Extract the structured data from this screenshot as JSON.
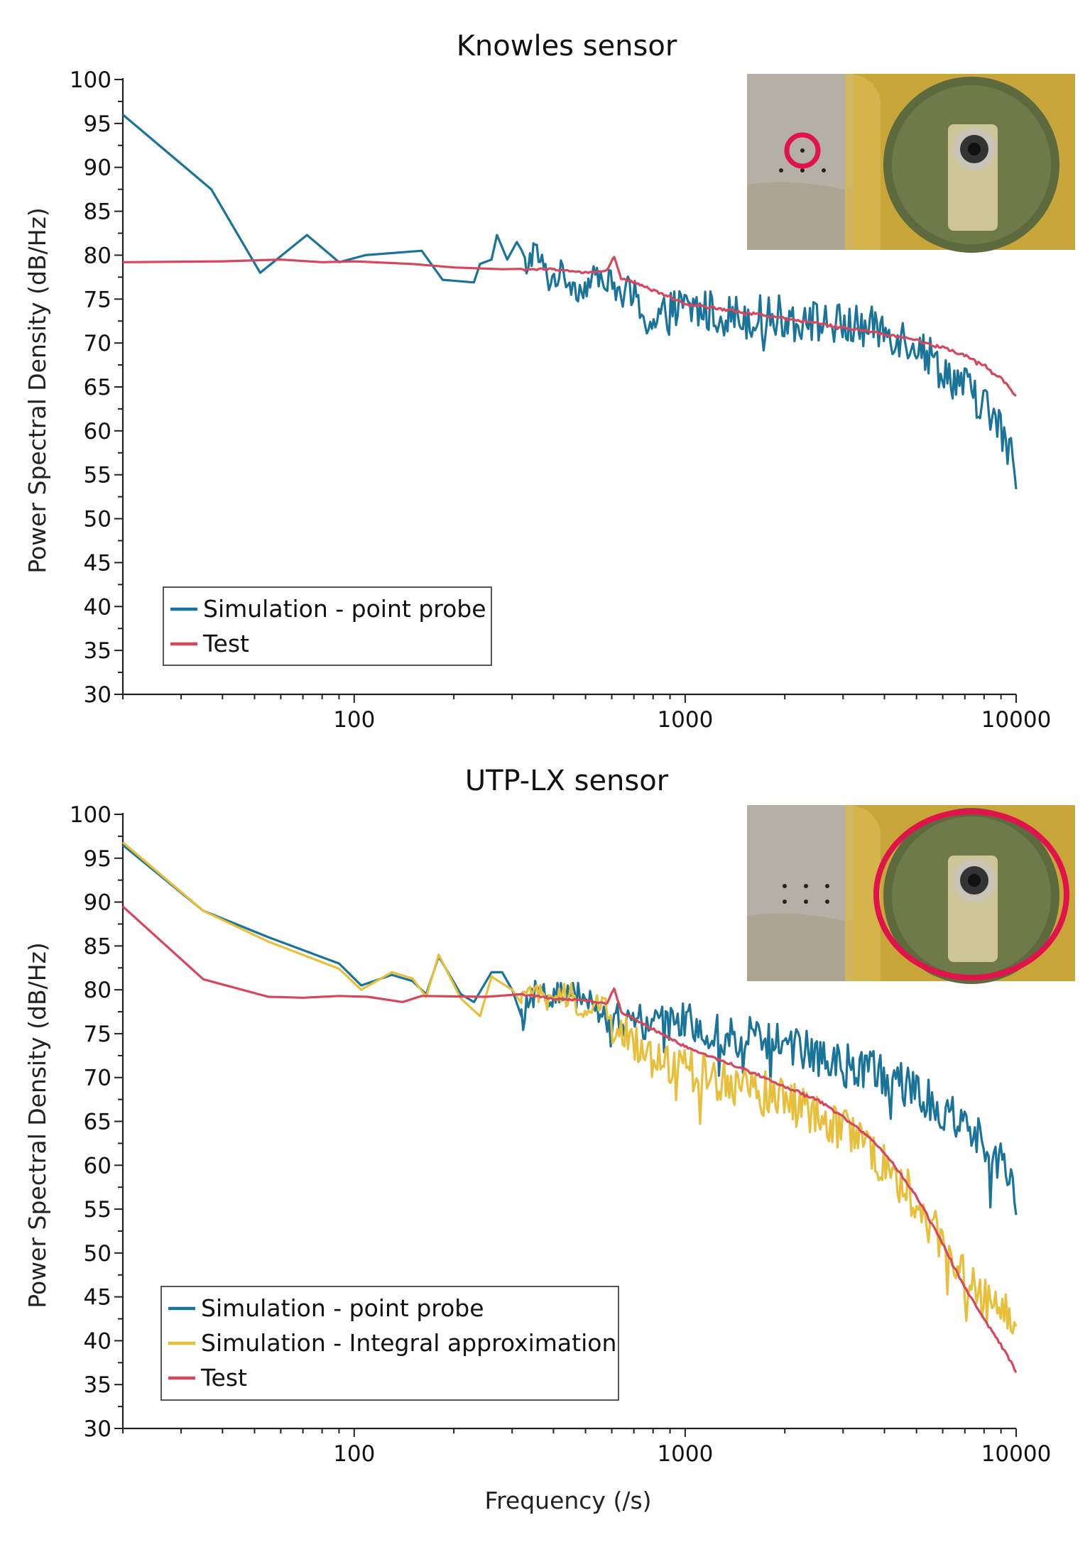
{
  "figure": {
    "xlabel": "Frequency (/s)"
  },
  "chart_data": [
    {
      "type": "line",
      "title": "Knowles sensor",
      "ylabel": "Power Spectral Density (dB/Hz)",
      "xlabel": "",
      "x_scale": "log",
      "xlim": [
        20,
        10000
      ],
      "ylim": [
        30,
        100
      ],
      "x_ticks": [
        "100",
        "1000",
        "10000"
      ],
      "y_ticks": [
        "100",
        "95",
        "90",
        "85",
        "80",
        "75",
        "70",
        "65",
        "60",
        "55",
        "50",
        "45",
        "40",
        "35",
        "30"
      ],
      "legend_position": "bottom-left",
      "inset_photo": "sensor photo with small red circle marking point probe location",
      "series": [
        {
          "name": "Simulation - point probe",
          "color": "#1a7399",
          "key_points": [
            [
              20,
              96
            ],
            [
              37,
              87.5
            ],
            [
              52,
              78
            ],
            [
              72,
              82.3
            ],
            [
              90,
              79.2
            ],
            [
              108,
              80
            ],
            [
              160,
              80.5
            ],
            [
              185,
              77.2
            ],
            [
              230,
              76.9
            ],
            [
              240,
              79
            ],
            [
              260,
              79.5
            ],
            [
              270,
              82.3
            ],
            [
              290,
              79.5
            ],
            [
              310,
              81.5
            ],
            [
              330,
              78.5
            ],
            [
              350,
              80.8
            ],
            [
              390,
              77
            ],
            [
              420,
              78
            ],
            [
              480,
              76
            ],
            [
              560,
              78
            ],
            [
              620,
              76
            ],
            [
              700,
              75
            ],
            [
              800,
              72
            ],
            [
              900,
              73.5
            ],
            [
              1000,
              74
            ],
            [
              1500,
              73
            ],
            [
              2000,
              73
            ],
            [
              3000,
              72
            ],
            [
              4000,
              71.5
            ],
            [
              5000,
              70
            ],
            [
              6000,
              67
            ],
            [
              7000,
              65
            ],
            [
              8000,
              63
            ],
            [
              9000,
              60
            ],
            [
              10000,
              55.5
            ]
          ],
          "noise_amplitude": 2.5
        },
        {
          "name": "Test",
          "color": "#d6475e",
          "key_points": [
            [
              20,
              79.2
            ],
            [
              40,
              79.3
            ],
            [
              60,
              79.5
            ],
            [
              80,
              79.2
            ],
            [
              100,
              79.3
            ],
            [
              150,
              79
            ],
            [
              200,
              78.6
            ],
            [
              280,
              78.4
            ],
            [
              400,
              78.4
            ],
            [
              500,
              78
            ],
            [
              580,
              78.2
            ],
            [
              610,
              79.9
            ],
            [
              640,
              77.5
            ],
            [
              800,
              76
            ],
            [
              1000,
              74.5
            ],
            [
              1500,
              73.5
            ],
            [
              2000,
              72.8
            ],
            [
              3000,
              71.8
            ],
            [
              4000,
              71
            ],
            [
              5000,
              70.3
            ],
            [
              6000,
              69.5
            ],
            [
              7000,
              68.6
            ],
            [
              8000,
              67.5
            ],
            [
              9000,
              66
            ],
            [
              10000,
              64
            ]
          ],
          "noise_amplitude": 0.15
        }
      ]
    },
    {
      "type": "line",
      "title": "UTP-LX sensor",
      "ylabel": "Power Spectral Density (dB/Hz)",
      "xlabel": "Frequency (/s)",
      "x_scale": "log",
      "xlim": [
        20,
        10000
      ],
      "ylim": [
        30,
        100
      ],
      "x_ticks": [
        "100",
        "1000",
        "10000"
      ],
      "y_ticks": [
        "100",
        "95",
        "90",
        "85",
        "80",
        "75",
        "70",
        "65",
        "60",
        "55",
        "50",
        "45",
        "40",
        "35",
        "30"
      ],
      "legend_position": "bottom-left",
      "inset_photo": "sensor photo with large red circle around the whole sensor membrane",
      "series": [
        {
          "name": "Simulation - point probe",
          "color": "#1a7399",
          "key_points": [
            [
              20,
              96.5
            ],
            [
              35,
              89
            ],
            [
              55,
              86
            ],
            [
              90,
              83
            ],
            [
              105,
              80.5
            ],
            [
              130,
              81.7
            ],
            [
              150,
              81
            ],
            [
              165,
              79.5
            ],
            [
              180,
              83.8
            ],
            [
              210,
              79.5
            ],
            [
              230,
              78.6
            ],
            [
              260,
              82
            ],
            [
              280,
              82
            ],
            [
              300,
              80
            ],
            [
              320,
              77
            ],
            [
              350,
              80.5
            ],
            [
              400,
              79
            ],
            [
              450,
              80.5
            ],
            [
              500,
              79
            ],
            [
              560,
              77
            ],
            [
              620,
              76
            ],
            [
              700,
              76.5
            ],
            [
              800,
              77
            ],
            [
              1000,
              76
            ],
            [
              1500,
              74.5
            ],
            [
              2000,
              74
            ],
            [
              2500,
              72.5
            ],
            [
              3000,
              71.5
            ],
            [
              4000,
              70.5
            ],
            [
              5000,
              68.5
            ],
            [
              6000,
              66.5
            ],
            [
              7000,
              65
            ],
            [
              8000,
              63
            ],
            [
              9000,
              60
            ],
            [
              10000,
              56.5
            ]
          ],
          "noise_amplitude": 2.5
        },
        {
          "name": "Simulation - Integral approximation",
          "color": "#e8bf3a",
          "key_points": [
            [
              20,
              96.8
            ],
            [
              35,
              89
            ],
            [
              55,
              85.5
            ],
            [
              90,
              82.4
            ],
            [
              105,
              80
            ],
            [
              130,
              82
            ],
            [
              150,
              81.3
            ],
            [
              165,
              79.2
            ],
            [
              180,
              84
            ],
            [
              210,
              79
            ],
            [
              240,
              77
            ],
            [
              260,
              81.5
            ],
            [
              300,
              80
            ],
            [
              320,
              78.5
            ],
            [
              350,
              80
            ],
            [
              400,
              78
            ],
            [
              450,
              80
            ],
            [
              500,
              77
            ],
            [
              560,
              79
            ],
            [
              600,
              76
            ],
            [
              650,
              75
            ],
            [
              800,
              72
            ],
            [
              1000,
              71
            ],
            [
              1500,
              69
            ],
            [
              2000,
              67.5
            ],
            [
              2500,
              65.5
            ],
            [
              3000,
              64
            ],
            [
              3500,
              62
            ],
            [
              4000,
              60
            ],
            [
              5000,
              56
            ],
            [
              6000,
              51
            ],
            [
              7000,
              47
            ],
            [
              8000,
              45
            ],
            [
              9000,
              44
            ],
            [
              10000,
              42
            ]
          ],
          "noise_amplitude": 2.5
        },
        {
          "name": "Test",
          "color": "#d6475e",
          "key_points": [
            [
              20,
              89.5
            ],
            [
              35,
              81.2
            ],
            [
              55,
              79.2
            ],
            [
              70,
              79.1
            ],
            [
              90,
              79.3
            ],
            [
              110,
              79.2
            ],
            [
              140,
              78.6
            ],
            [
              160,
              79.3
            ],
            [
              250,
              79.2
            ],
            [
              320,
              79.5
            ],
            [
              400,
              79
            ],
            [
              500,
              78.8
            ],
            [
              580,
              78.4
            ],
            [
              610,
              80.3
            ],
            [
              640,
              77.5
            ],
            [
              800,
              75.5
            ],
            [
              1000,
              73.5
            ],
            [
              1500,
              71
            ],
            [
              2000,
              69
            ],
            [
              2500,
              67.5
            ],
            [
              3000,
              65.5
            ],
            [
              3500,
              63.5
            ],
            [
              4000,
              61.5
            ],
            [
              5000,
              56.5
            ],
            [
              6000,
              51
            ],
            [
              7000,
              46
            ],
            [
              8000,
              42.5
            ],
            [
              9000,
              39.5
            ],
            [
              10000,
              36.5
            ]
          ],
          "noise_amplitude": 0.15
        }
      ]
    }
  ]
}
